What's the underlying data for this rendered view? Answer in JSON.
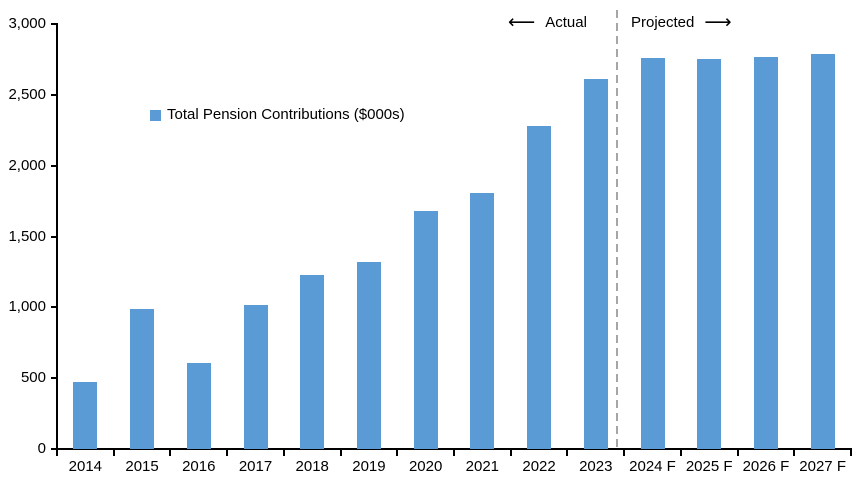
{
  "chart_data": {
    "type": "bar",
    "title": "",
    "legend_label": "Total Pension Contributions ($000s)",
    "categories": [
      "2014",
      "2015",
      "2016",
      "2017",
      "2018",
      "2019",
      "2020",
      "2021",
      "2022",
      "2023",
      "2024 F",
      "2025 F",
      "2026 F",
      "2027 F"
    ],
    "values": [
      470,
      990,
      610,
      1020,
      1230,
      1320,
      1680,
      1810,
      2280,
      2610,
      2760,
      2750,
      2770,
      2790
    ],
    "ylim": [
      0,
      3000
    ],
    "ytick_step": 500,
    "ytick_labels": [
      "0",
      "500",
      "1,000",
      "1,500",
      "2,000",
      "2,500",
      "3,000"
    ],
    "grid": false,
    "legend_position": "inside-upper-left",
    "bar_color": "#5B9BD5",
    "axis_color": "#000000",
    "divider_color": "#A6A6A6",
    "divider_after_index": 9,
    "annotations": {
      "left_label": "Actual",
      "right_label": "Projected"
    }
  },
  "icons": {
    "left_arrow": "⟵",
    "right_arrow": "⟶"
  }
}
